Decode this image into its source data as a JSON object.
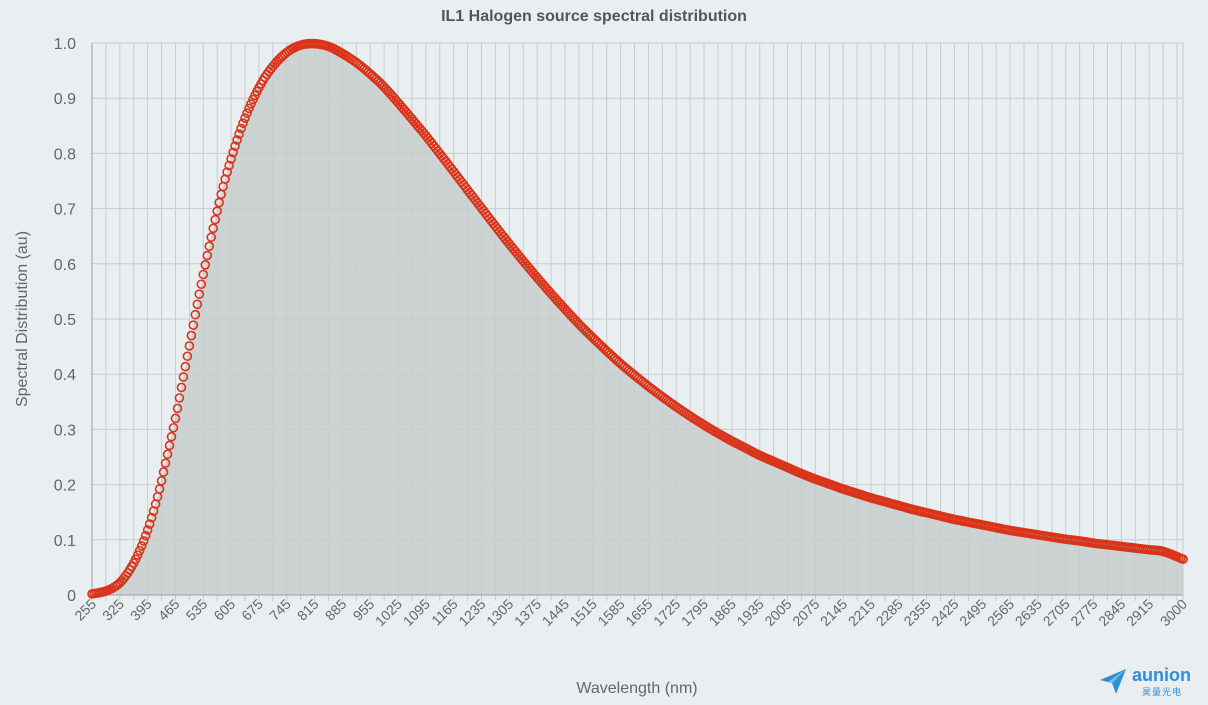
{
  "chart_data": {
    "type": "area",
    "title": "IL1 Halogen source spectral distribution",
    "xlabel": "Wavelength (nm)",
    "ylabel": "Spectral Distribution (au)",
    "ylim": [
      0,
      1.0
    ],
    "xlim": [
      255,
      3000
    ],
    "yticks": [
      "0",
      "0.1",
      "0.2",
      "0.3",
      "0.4",
      "0.5",
      "0.6",
      "0.7",
      "0.8",
      "0.9",
      "1.0"
    ],
    "xticks": [
      "255",
      "325",
      "395",
      "465",
      "535",
      "605",
      "675",
      "745",
      "815",
      "885",
      "955",
      "1025",
      "1095",
      "1165",
      "1235",
      "1305",
      "1375",
      "1445",
      "1515",
      "1585",
      "1655",
      "1725",
      "1795",
      "1865",
      "1935",
      "2005",
      "2075",
      "2145",
      "2215",
      "2285",
      "2355",
      "2425",
      "2495",
      "2565",
      "2635",
      "2705",
      "2775",
      "2845",
      "2915",
      "3000"
    ],
    "grid": true,
    "legend": "none",
    "colors": {
      "line": "#d9341a",
      "fill": "#c8cccd",
      "background": "#e9eef1"
    },
    "series": [
      {
        "x": [
          255,
          285,
          305,
          325,
          345,
          365,
          385,
          405,
          425,
          445,
          465,
          485,
          505,
          525,
          545,
          565,
          585,
          605,
          625,
          645,
          665,
          685,
          705,
          725,
          745,
          765,
          785,
          805,
          825,
          845,
          865,
          885,
          905,
          925,
          955,
          985,
          1025,
          1065,
          1095,
          1135,
          1165,
          1205,
          1235,
          1270,
          1305,
          1340,
          1375,
          1410,
          1445,
          1480,
          1515,
          1550,
          1585,
          1620,
          1655,
          1690,
          1725,
          1760,
          1795,
          1830,
          1865,
          1900,
          1935,
          1970,
          2005,
          2040,
          2075,
          2110,
          2145,
          2180,
          2215,
          2250,
          2285,
          2320,
          2355,
          2390,
          2425,
          2460,
          2495,
          2530,
          2565,
          2600,
          2635,
          2670,
          2705,
          2740,
          2775,
          2810,
          2845,
          2880,
          2915,
          2950,
          3000
        ],
        "y": [
          0.002,
          0.006,
          0.012,
          0.022,
          0.04,
          0.065,
          0.098,
          0.14,
          0.192,
          0.255,
          0.32,
          0.395,
          0.47,
          0.545,
          0.615,
          0.68,
          0.74,
          0.79,
          0.835,
          0.873,
          0.905,
          0.932,
          0.953,
          0.97,
          0.983,
          0.992,
          0.997,
          0.999,
          0.998,
          0.995,
          0.989,
          0.981,
          0.972,
          0.962,
          0.944,
          0.924,
          0.892,
          0.858,
          0.832,
          0.795,
          0.767,
          0.729,
          0.701,
          0.668,
          0.636,
          0.605,
          0.575,
          0.546,
          0.518,
          0.491,
          0.466,
          0.442,
          0.419,
          0.398,
          0.378,
          0.359,
          0.341,
          0.324,
          0.308,
          0.293,
          0.279,
          0.266,
          0.253,
          0.242,
          0.231,
          0.22,
          0.21,
          0.201,
          0.192,
          0.184,
          0.176,
          0.169,
          0.162,
          0.155,
          0.149,
          0.143,
          0.137,
          0.132,
          0.127,
          0.122,
          0.117,
          0.113,
          0.109,
          0.105,
          0.101,
          0.098,
          0.094,
          0.091,
          0.088,
          0.085,
          0.082,
          0.079,
          0.065
        ]
      }
    ]
  },
  "watermark": {
    "brand": "aunion",
    "sub": "昊量光电"
  }
}
